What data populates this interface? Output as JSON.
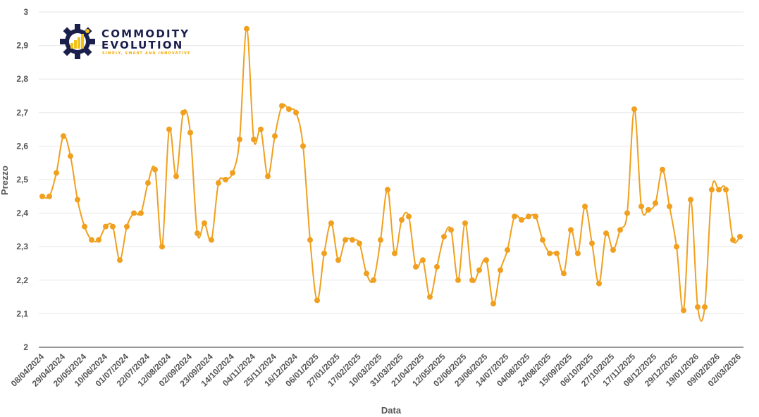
{
  "chart_data": {
    "type": "line",
    "xlabel": "Data",
    "ylabel": "Prezzo",
    "ylim": [
      2,
      3
    ],
    "y_ticks": [
      "2",
      "2,1",
      "2,2",
      "2,3",
      "2,4",
      "2,5",
      "2,6",
      "2,7",
      "2,8",
      "2,9",
      "3"
    ],
    "x_tick_labels": [
      "08/04/2024",
      "29/04/2024",
      "20/05/2024",
      "10/06/2024",
      "01/07/2024",
      "22/07/2024",
      "12/08/2024",
      "02/09/2024",
      "23/09/2024",
      "14/10/2024",
      "04/11/2024",
      "25/11/2024",
      "16/12/2024",
      "06/01/2025",
      "27/01/2025",
      "17/02/2025",
      "10/03/2025",
      "31/03/2025",
      "21/04/2025",
      "12/05/2025",
      "02/06/2025",
      "23/06/2025",
      "14/07/2025",
      "04/08/2025",
      "24/08/2025",
      "15/09/2025",
      "06/10/2025",
      "27/10/2025",
      "17/11/2025",
      "08/12/2025",
      "29/12/2025",
      "19/01/2026",
      "09/02/2026",
      "02/03/2026"
    ],
    "grid": true,
    "line_color": "#f0a01e",
    "series": [
      {
        "values": [
          2.45,
          2.45,
          2.52,
          2.63,
          2.57,
          2.44,
          2.36,
          2.32,
          2.32,
          2.36,
          2.36,
          2.26,
          2.36,
          2.4,
          2.4,
          2.49,
          2.53,
          2.3,
          2.65,
          2.51,
          2.7,
          2.64,
          2.34,
          2.37,
          2.32,
          2.49,
          2.5,
          2.52,
          2.62,
          2.95,
          2.62,
          2.65,
          2.51,
          2.63,
          2.72,
          2.71,
          2.7,
          2.6,
          2.32,
          2.14,
          2.28,
          2.37,
          2.26,
          2.32,
          2.32,
          2.31,
          2.22,
          2.2,
          2.32,
          2.47,
          2.28,
          2.38,
          2.39,
          2.24,
          2.26,
          2.15,
          2.24,
          2.33,
          2.35,
          2.2,
          2.37,
          2.2,
          2.23,
          2.26,
          2.13,
          2.23,
          2.29,
          2.39,
          2.38,
          2.39,
          2.39,
          2.32,
          2.28,
          2.28,
          2.22,
          2.35,
          2.28,
          2.42,
          2.31,
          2.19,
          2.34,
          2.29,
          2.35,
          2.4,
          2.71,
          2.42,
          2.41,
          2.43,
          2.53,
          2.42,
          2.3,
          2.11,
          2.44,
          2.12,
          2.12,
          2.47,
          2.47,
          2.47,
          2.32,
          2.33
        ]
      }
    ]
  },
  "logo": {
    "brand_line1": "COMMODITY",
    "brand_line2": "EVOLUTION",
    "tagline": "SIMPLY, SMART AND INNOVATIVE"
  }
}
